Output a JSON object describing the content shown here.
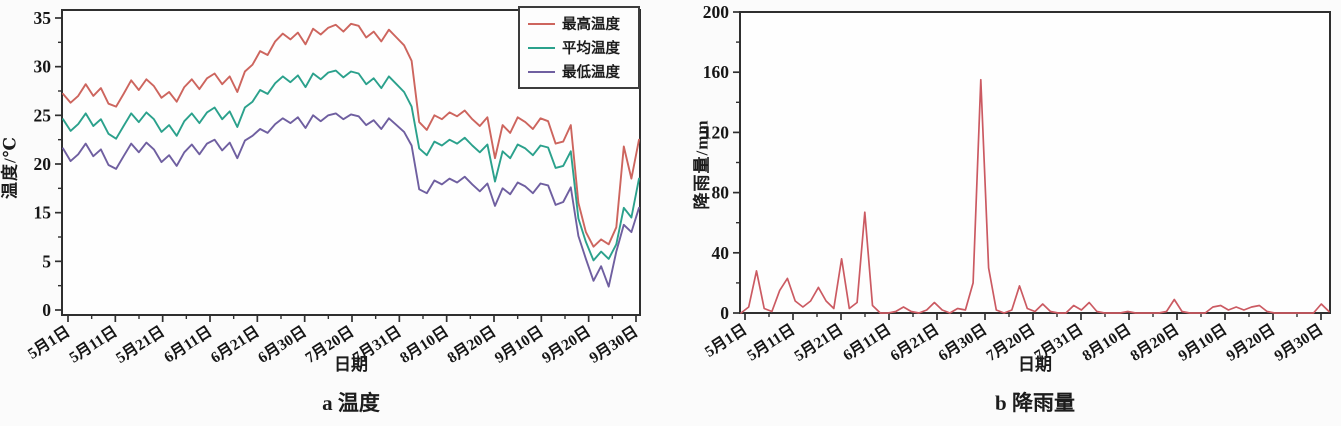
{
  "figure": {
    "caption_a": "a 温度",
    "caption_b": "b 降雨量"
  },
  "chart_data": [
    {
      "type": "line",
      "title": "a 温度",
      "xlabel": "日期",
      "ylabel": "温度/℃",
      "ylim": [
        0,
        35
      ],
      "grid": false,
      "legend_position": "top-right",
      "x_tick_labels": [
        "5月1日",
        "5月11日",
        "5月21日",
        "6月11日",
        "6月21日",
        "6月30日",
        "7月20日",
        "7月31日",
        "8月10日",
        "8月20日",
        "9月10日",
        "9月20日",
        "9月30日"
      ],
      "y_tick_labels": [
        "35",
        "30",
        "25",
        "20",
        "15",
        "5",
        "0"
      ],
      "y_tick_values": [
        35,
        30,
        25,
        20,
        15,
        5,
        0
      ],
      "series": [
        {
          "name": "最高温度",
          "color": "#cd655e",
          "values": [
            27.2,
            26.3,
            27.0,
            28.2,
            27.0,
            27.8,
            26.2,
            25.9,
            27.2,
            28.6,
            27.6,
            28.7,
            28.0,
            26.8,
            27.4,
            26.4,
            27.9,
            28.7,
            27.7,
            28.8,
            29.3,
            28.2,
            29.0,
            27.4,
            29.5,
            30.2,
            31.6,
            31.2,
            32.6,
            33.4,
            32.8,
            33.5,
            32.3,
            33.9,
            33.3,
            34.0,
            34.3,
            33.6,
            34.4,
            34.2,
            33.0,
            33.6,
            32.6,
            33.8,
            33.0,
            32.2,
            30.6,
            24.3,
            23.5,
            25.0,
            24.6,
            25.3,
            24.9,
            25.5,
            24.6,
            23.9,
            24.8,
            20.6,
            24.0,
            23.2,
            24.8,
            24.3,
            23.6,
            24.7,
            24.4,
            22.1,
            22.3,
            24.0,
            16.0,
            11.0,
            8.0,
            9.5,
            8.5,
            12.0,
            21.8,
            18.5,
            22.5
          ]
        },
        {
          "name": "平均温度",
          "color": "#2ba18c",
          "values": [
            24.6,
            23.4,
            24.1,
            25.2,
            23.9,
            24.6,
            23.1,
            22.6,
            23.9,
            25.2,
            24.3,
            25.3,
            24.6,
            23.3,
            24.0,
            22.9,
            24.4,
            25.2,
            24.2,
            25.3,
            25.8,
            24.6,
            25.4,
            23.8,
            25.8,
            26.4,
            27.6,
            27.2,
            28.3,
            29.0,
            28.4,
            29.1,
            27.9,
            29.3,
            28.7,
            29.4,
            29.6,
            28.9,
            29.5,
            29.3,
            28.2,
            28.8,
            27.8,
            29.0,
            28.2,
            27.4,
            25.9,
            21.6,
            20.9,
            22.3,
            21.9,
            22.5,
            22.1,
            22.7,
            21.9,
            21.2,
            22.0,
            18.2,
            21.3,
            20.6,
            22.0,
            21.6,
            20.9,
            21.9,
            21.7,
            19.6,
            19.8,
            21.3,
            13.8,
            9.0,
            5.2,
            7.0,
            5.5,
            8.5,
            15.5,
            14.0,
            18.5
          ]
        },
        {
          "name": "最低温度",
          "color": "#6f5fa0",
          "values": [
            21.6,
            20.3,
            21.0,
            22.1,
            20.8,
            21.5,
            19.9,
            19.5,
            20.8,
            22.1,
            21.2,
            22.2,
            21.5,
            20.2,
            20.9,
            19.8,
            21.2,
            22.0,
            21.0,
            22.1,
            22.5,
            21.4,
            22.2,
            20.6,
            22.4,
            22.9,
            23.6,
            23.2,
            24.1,
            24.7,
            24.2,
            24.8,
            23.7,
            25.0,
            24.4,
            25.0,
            25.2,
            24.6,
            25.1,
            24.9,
            24.0,
            24.5,
            23.6,
            24.7,
            24.0,
            23.3,
            21.9,
            17.4,
            17.0,
            18.3,
            17.9,
            18.5,
            18.1,
            18.7,
            17.9,
            17.2,
            18.0,
            15.7,
            17.5,
            16.9,
            18.1,
            17.7,
            17.0,
            18.0,
            17.8,
            15.8,
            16.1,
            17.6,
            10.2,
            5.5,
            3.0,
            4.5,
            2.4,
            7.0,
            12.5,
            11.0,
            15.5
          ]
        }
      ]
    },
    {
      "type": "line",
      "title": "b 降雨量",
      "xlabel": "日期",
      "ylabel": "降雨量/mm",
      "ylim": [
        0,
        200
      ],
      "grid": false,
      "legend_position": "none",
      "x_tick_labels": [
        "5月1日",
        "5月11日",
        "5月21日",
        "6月11日",
        "6月21日",
        "6月30日",
        "7月20日",
        "7月31日",
        "8月10日",
        "8月20日",
        "9月10日",
        "9月20日",
        "9月30日"
      ],
      "y_tick_labels": [
        "200",
        "160",
        "120",
        "80",
        "40",
        "0"
      ],
      "y_tick_values": [
        200,
        160,
        120,
        80,
        40,
        0
      ],
      "series": [
        {
          "name": "降雨量",
          "color": "#cb5a62",
          "values": [
            0,
            4,
            28,
            3,
            1,
            15,
            23,
            8,
            4,
            8,
            17,
            8,
            3,
            36,
            3,
            7,
            67,
            5,
            0,
            0,
            1,
            4,
            1,
            0,
            2,
            7,
            2,
            0,
            3,
            2,
            20,
            155,
            30,
            2,
            0,
            2,
            18,
            3,
            1,
            6,
            1,
            0,
            0,
            5,
            2,
            7,
            1,
            0,
            0,
            0,
            1,
            0,
            0,
            0,
            0,
            1,
            9,
            1,
            0,
            0,
            0,
            4,
            5,
            2,
            4,
            2,
            4,
            5,
            1,
            0,
            0,
            0,
            0,
            0,
            0,
            6,
            1
          ]
        }
      ]
    }
  ]
}
